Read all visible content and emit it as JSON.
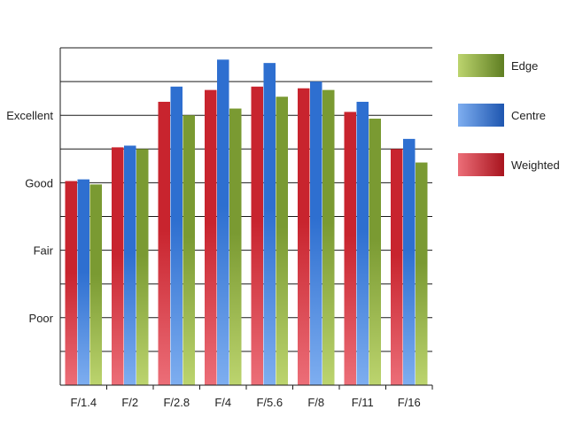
{
  "chart_data": {
    "type": "bar",
    "title": "",
    "xlabel": "",
    "ylabel": "",
    "categories": [
      "F/1.4",
      "F/2",
      "F/2.8",
      "F/4",
      "F/5.6",
      "F/8",
      "F/11",
      "F/16"
    ],
    "y_ticks": [
      {
        "label": "Poor",
        "value": 2
      },
      {
        "label": "Fair",
        "value": 4
      },
      {
        "label": "Good",
        "value": 6
      },
      {
        "label": "Excellent",
        "value": 8
      }
    ],
    "ylim": [
      0,
      10
    ],
    "grid": true,
    "legend_position": "right",
    "series": [
      {
        "name": "Weighted",
        "color": "#c8242e",
        "values": [
          6.05,
          7.05,
          8.4,
          8.75,
          8.85,
          8.8,
          8.1,
          7.0
        ]
      },
      {
        "name": "Centre",
        "color": "#2e6fd0",
        "values": [
          6.1,
          7.1,
          8.85,
          9.65,
          9.55,
          9.0,
          8.4,
          7.3
        ]
      },
      {
        "name": "Edge",
        "color": "#7a9a32",
        "values": [
          5.95,
          7.0,
          8.0,
          8.2,
          8.55,
          8.75,
          7.9,
          6.6
        ]
      }
    ],
    "legend_order": [
      "Edge",
      "Centre",
      "Weighted"
    ]
  }
}
